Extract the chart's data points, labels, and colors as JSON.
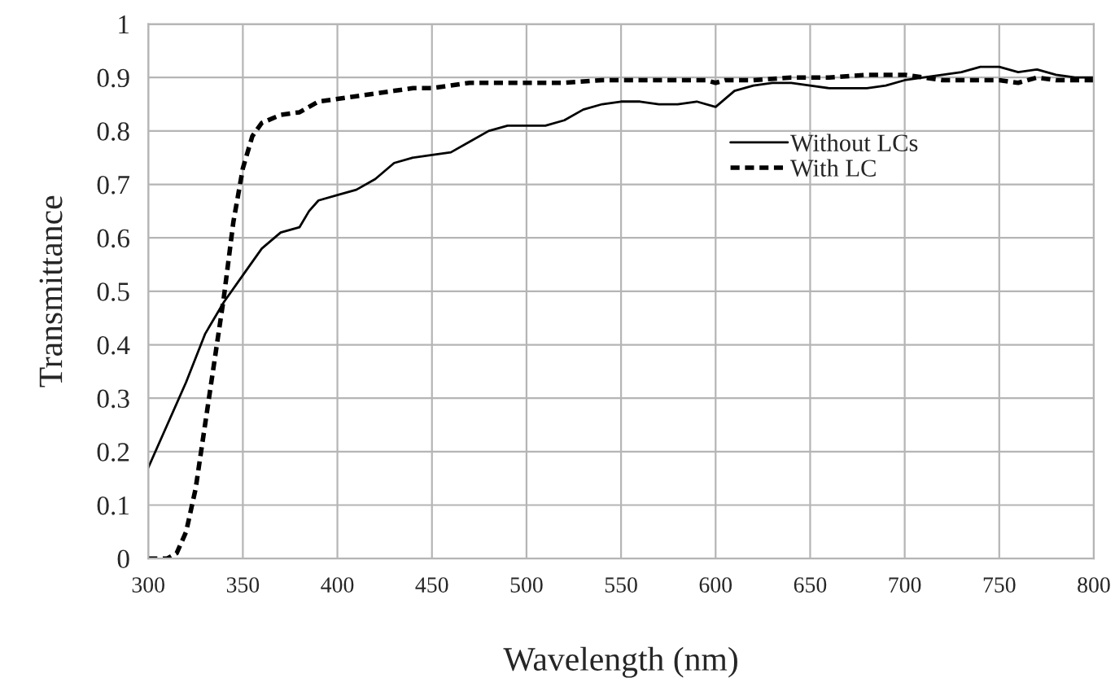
{
  "chart_data": {
    "type": "line",
    "xlabel": "Wavelength (nm)",
    "ylabel": "Transmittance",
    "xlim": [
      300,
      800
    ],
    "xticks": [
      300,
      350,
      400,
      450,
      500,
      550,
      600,
      650,
      700,
      750,
      800
    ],
    "ylim": [
      0,
      1
    ],
    "yticks": [
      0,
      0.1,
      0.2,
      0.3,
      0.4,
      0.5,
      0.6,
      0.7,
      0.8,
      0.9,
      1
    ],
    "grid": true,
    "legend": "right",
    "marker": "none",
    "series": [
      {
        "name": "Without LCs",
        "color": "#000000",
        "line_style": "solid",
        "x": [
          300,
          310,
          320,
          330,
          340,
          350,
          360,
          370,
          380,
          385,
          390,
          400,
          410,
          420,
          430,
          440,
          450,
          460,
          470,
          480,
          490,
          500,
          510,
          520,
          530,
          540,
          550,
          560,
          570,
          580,
          590,
          600,
          610,
          620,
          630,
          640,
          650,
          660,
          670,
          680,
          690,
          700,
          710,
          720,
          730,
          740,
          750,
          760,
          770,
          780,
          790,
          800
        ],
        "values": [
          0.17,
          0.25,
          0.33,
          0.42,
          0.48,
          0.53,
          0.58,
          0.61,
          0.62,
          0.65,
          0.67,
          0.68,
          0.69,
          0.71,
          0.74,
          0.75,
          0.755,
          0.76,
          0.78,
          0.8,
          0.81,
          0.81,
          0.81,
          0.82,
          0.84,
          0.85,
          0.855,
          0.855,
          0.85,
          0.85,
          0.855,
          0.845,
          0.875,
          0.885,
          0.89,
          0.89,
          0.885,
          0.88,
          0.88,
          0.88,
          0.885,
          0.895,
          0.9,
          0.905,
          0.91,
          0.92,
          0.92,
          0.91,
          0.915,
          0.905,
          0.9,
          0.9
        ]
      },
      {
        "name": "With LC",
        "color": "#000000",
        "line_style": "dotted",
        "x": [
          300,
          310,
          315,
          320,
          325,
          330,
          335,
          340,
          345,
          350,
          355,
          360,
          370,
          380,
          390,
          400,
          410,
          420,
          430,
          440,
          450,
          460,
          470,
          480,
          490,
          500,
          520,
          540,
          560,
          580,
          595,
          600,
          605,
          620,
          640,
          660,
          680,
          700,
          720,
          740,
          750,
          760,
          770,
          780,
          800
        ],
        "values": [
          0.0,
          0.0,
          0.01,
          0.05,
          0.13,
          0.25,
          0.37,
          0.49,
          0.63,
          0.73,
          0.79,
          0.815,
          0.83,
          0.835,
          0.855,
          0.86,
          0.865,
          0.87,
          0.875,
          0.88,
          0.88,
          0.885,
          0.89,
          0.89,
          0.89,
          0.89,
          0.89,
          0.895,
          0.895,
          0.895,
          0.895,
          0.89,
          0.895,
          0.895,
          0.9,
          0.9,
          0.905,
          0.905,
          0.895,
          0.895,
          0.895,
          0.89,
          0.9,
          0.895,
          0.895
        ]
      }
    ]
  }
}
